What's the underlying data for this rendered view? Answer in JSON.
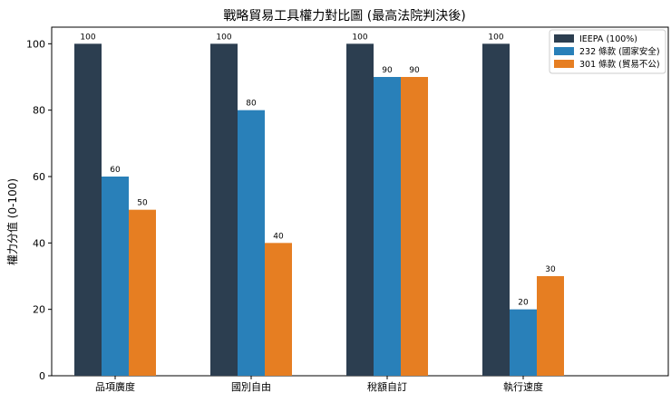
{
  "chart_data": {
    "type": "bar",
    "title": "戰略貿易工具權力對比圖 (最高法院判決後)",
    "xlabel": "",
    "ylabel": "權力分值 (0-100)",
    "ylim": [
      0,
      105
    ],
    "yticks": [
      0,
      20,
      40,
      60,
      80,
      100
    ],
    "categories": [
      "品項廣度",
      "國別自由",
      "稅額自訂",
      "執行速度"
    ],
    "series": [
      {
        "name": "IEEPA (100%)",
        "color": "#2c3e50",
        "values": [
          100,
          100,
          100,
          100
        ]
      },
      {
        "name": "232 條款 (國家安全)",
        "color": "#2980b9",
        "values": [
          60,
          80,
          90,
          20
        ]
      },
      {
        "name": "301 條款 (貿易不公)",
        "color": "#e67e22",
        "values": [
          50,
          40,
          90,
          30
        ]
      }
    ],
    "legend_position": "top-right",
    "grid": false
  }
}
